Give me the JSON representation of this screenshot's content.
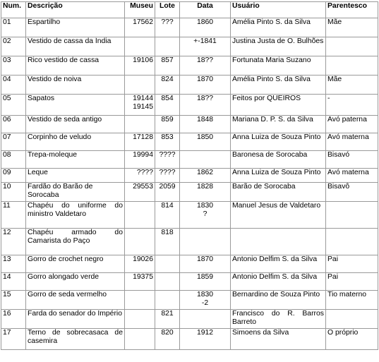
{
  "headers": {
    "num": "Num.",
    "descricao": "Descrição",
    "museu": "Museu",
    "lote": "Lote",
    "data": "Data",
    "usuario": "Usuário",
    "parentesco": "Parentesco"
  },
  "rows": [
    {
      "num": "01",
      "desc": "Espartilho",
      "museu": "17562",
      "lote": "???",
      "data": "1860",
      "usuario": "Amélia Pinto S. da Silva",
      "parentesco": "Mãe"
    },
    {
      "num": "02",
      "desc": "Vestido de cassa da Índia",
      "museu": "",
      "lote": "",
      "data": "+-1841",
      "usuario": "Justina Justa de O. Bulhões",
      "parentesco": ""
    },
    {
      "num": "03",
      "desc": "Rico vestido de cassa",
      "museu": "19106",
      "lote": "857",
      "data": "18??",
      "usuario": "Fortunata Maria Suzano",
      "parentesco": ""
    },
    {
      "num": "04",
      "desc": "Vestido de noiva",
      "museu": "",
      "lote": "824",
      "data": "1870",
      "usuario": "Amélia Pinto S. da Silva",
      "parentesco": "Mãe"
    },
    {
      "num": "05",
      "desc": "Sapatos",
      "museu": "19144",
      "museu2": "19145",
      "lote": "854",
      "data": "18??",
      "usuario": "Feitos por QUEIROS",
      "parentesco": "-"
    },
    {
      "num": "06",
      "desc": "Vestido de seda antigo",
      "museu": "",
      "lote": "859",
      "data": "1848",
      "usuario": "Mariana D. P. S. da Silva",
      "parentesco": "Avó paterna"
    },
    {
      "num": "07",
      "desc": "Corpinho de veludo",
      "museu": "17128",
      "lote": "853",
      "data": "1850",
      "usuario": "Anna Luiza de Souza Pinto",
      "parentesco": "Avó materna"
    },
    {
      "num": "08",
      "desc": "Trepa-moleque",
      "museu": "19994",
      "lote": "????",
      "data": "",
      "usuario": "Baronesa de Sorocaba",
      "parentesco": "Bisavó"
    },
    {
      "num": "09",
      "desc": "Leque",
      "museu": "????",
      "lote": "????",
      "data": "1862",
      "usuario": "Anna Luiza de Souza Pinto",
      "parentesco": "Avó materna"
    },
    {
      "num": "10",
      "desc": "Fardão do Barão de Sorocaba",
      "museu": "29553",
      "lote": "2059",
      "data": "1828",
      "usuario": "Barão de Sorocaba",
      "parentesco": "Bisavô"
    },
    {
      "num": "11",
      "desc": "Chapéu do uniforme do ministro Valdetaro",
      "museu": "",
      "lote": "814",
      "data": "1830",
      "data2": "?",
      "usuario": "Manuel Jesus de Valdetaro",
      "parentesco": ""
    },
    {
      "num": "12",
      "desc": "Chapéu armado do Camarista do Paço",
      "museu": "",
      "lote": "818",
      "data": "",
      "usuario": "",
      "parentesco": ""
    },
    {
      "num": "13",
      "desc": "Gorro de crochet negro",
      "museu": "19026",
      "lote": "",
      "data": "1870",
      "usuario": "Antonio Delfim S. da Silva",
      "parentesco": "Pai"
    },
    {
      "num": "14",
      "desc": "Gorro alongado verde",
      "museu": "19375",
      "lote": "",
      "data": "1859",
      "usuario": "Antonio Delfim S. da Silva",
      "parentesco": "Pai"
    },
    {
      "num": "15",
      "desc": "Gorro de seda vermelho",
      "museu": "",
      "lote": "",
      "data": "1830",
      "data2": "-2",
      "usuario": "Bernardino de Souza Pinto",
      "parentesco": "Tio materno"
    },
    {
      "num": "16",
      "desc": "Farda do senador do Império",
      "museu": "",
      "lote": "821",
      "data": "",
      "usuario": "Francisco do R. Barros Barreto",
      "parentesco": ""
    },
    {
      "num": "17",
      "desc": "Terno de sobrecasaca de casemira",
      "museu": "",
      "lote": "820",
      "data": "1912",
      "usuario": "Simoens da Silva",
      "parentesco": "O próprio"
    }
  ]
}
